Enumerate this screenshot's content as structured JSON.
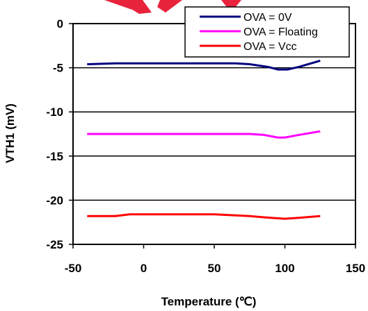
{
  "chart_data": {
    "type": "line",
    "title": "",
    "xlabel": "Temperature (℃)",
    "ylabel": "VTH1 (mV)",
    "xlim": [
      -50,
      150
    ],
    "ylim": [
      -25,
      0
    ],
    "x_ticks": [
      "-50",
      "0",
      "50",
      "100",
      "150"
    ],
    "y_ticks": [
      "0",
      "-5",
      "-10",
      "-15",
      "-20",
      "-25"
    ],
    "grid": "horizontal",
    "legend_position": "top-right",
    "series": [
      {
        "name": "OVA = 0V",
        "color": "#000080",
        "points": [
          [
            -40,
            -4.6
          ],
          [
            -20,
            -4.5
          ],
          [
            0,
            -4.5
          ],
          [
            25,
            -4.5
          ],
          [
            65,
            -4.5
          ],
          [
            75,
            -4.6
          ],
          [
            88,
            -4.9
          ],
          [
            95,
            -5.2
          ],
          [
            102,
            -5.2
          ],
          [
            110,
            -4.9
          ],
          [
            125,
            -4.2
          ]
        ]
      },
      {
        "name": "OVA = Floating",
        "color": "#ff00ff",
        "points": [
          [
            -40,
            -12.5
          ],
          [
            0,
            -12.5
          ],
          [
            25,
            -12.5
          ],
          [
            75,
            -12.5
          ],
          [
            85,
            -12.6
          ],
          [
            95,
            -12.9
          ],
          [
            100,
            -12.9
          ],
          [
            110,
            -12.6
          ],
          [
            125,
            -12.2
          ]
        ]
      },
      {
        "name": "OVA = Vcc",
        "color": "#ff0000",
        "points": [
          [
            -40,
            -21.8
          ],
          [
            -20,
            -21.8
          ],
          [
            -10,
            -21.6
          ],
          [
            25,
            -21.6
          ],
          [
            50,
            -21.6
          ],
          [
            75,
            -21.8
          ],
          [
            90,
            -22.0
          ],
          [
            100,
            -22.1
          ],
          [
            110,
            -22.0
          ],
          [
            125,
            -21.8
          ]
        ]
      }
    ]
  }
}
